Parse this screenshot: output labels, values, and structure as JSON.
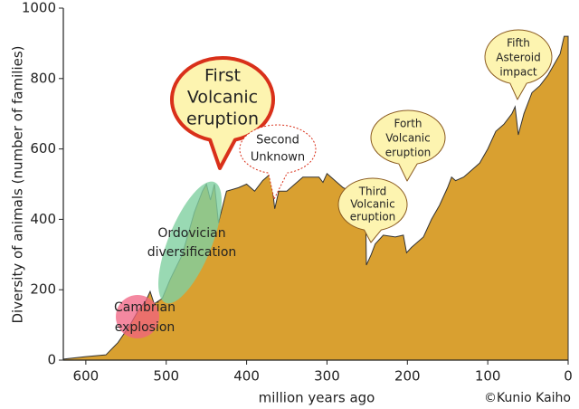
{
  "chart_data": {
    "type": "area",
    "x_label": "million years ago",
    "y_label": "Diversity of animals (number of families)",
    "credit": "©Kunio Kaiho",
    "color": "#d9a030",
    "xlim": [
      628,
      0
    ],
    "ylim": [
      0,
      1000
    ],
    "xticks": [
      600,
      500,
      400,
      300,
      200,
      100,
      0
    ],
    "yticks": [
      0,
      200,
      400,
      600,
      800,
      1000
    ],
    "grid": false,
    "x": [
      628,
      600,
      575,
      560,
      545,
      535,
      525,
      520,
      515,
      505,
      495,
      480,
      465,
      455,
      450,
      445,
      440,
      435,
      425,
      410,
      400,
      390,
      380,
      370,
      365,
      360,
      350,
      340,
      330,
      310,
      305,
      300,
      290,
      280,
      260,
      252,
      251,
      245,
      240,
      230,
      215,
      205,
      201,
      195,
      180,
      170,
      160,
      150,
      145,
      140,
      130,
      120,
      110,
      100,
      90,
      80,
      70,
      66,
      62,
      55,
      45,
      35,
      25,
      15,
      10,
      5,
      0
    ],
    "values": [
      3,
      10,
      15,
      50,
      100,
      140,
      170,
      195,
      160,
      175,
      230,
      300,
      420,
      480,
      500,
      455,
      500,
      390,
      480,
      490,
      500,
      480,
      510,
      530,
      430,
      480,
      480,
      500,
      520,
      520,
      505,
      530,
      510,
      490,
      470,
      440,
      270,
      300,
      330,
      355,
      350,
      355,
      305,
      320,
      350,
      400,
      440,
      490,
      520,
      510,
      520,
      540,
      560,
      600,
      650,
      670,
      700,
      720,
      640,
      700,
      760,
      780,
      810,
      850,
      870,
      920,
      920
    ],
    "annotations": [
      {
        "lines": [
          "Cambrian",
          "explosion"
        ]
      },
      {
        "lines": [
          "Ordovician",
          "diversification"
        ]
      },
      {
        "lines": [
          "First",
          "Volcanic",
          "eruption"
        ]
      },
      {
        "lines": [
          "Second",
          "Unknown"
        ]
      },
      {
        "lines": [
          "Third",
          "Volcanic",
          "eruption"
        ]
      },
      {
        "lines": [
          "Forth",
          "Volcanic",
          "eruption"
        ]
      },
      {
        "lines": [
          "Fifth",
          "Asteroid",
          "impact"
        ]
      }
    ]
  }
}
